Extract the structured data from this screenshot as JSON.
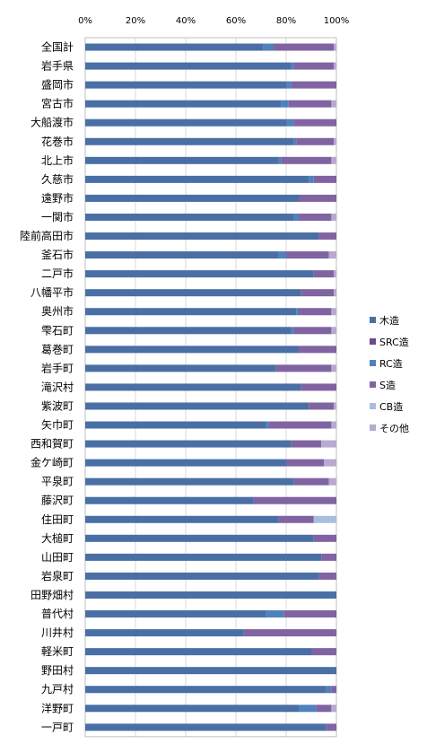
{
  "chart_data": {
    "type": "bar",
    "orientation": "horizontal",
    "stacked": "percent",
    "xlim": [
      0,
      100
    ],
    "x_ticks": [
      "0%",
      "20%",
      "40%",
      "60%",
      "80%",
      "100%"
    ],
    "x_tick_values": [
      0,
      20,
      40,
      60,
      80,
      100
    ],
    "grid": true,
    "legend_position": "right",
    "categories": [
      "全国計",
      "岩手県",
      "盛岡市",
      "宮古市",
      "大船渡市",
      "花巻市",
      "北上市",
      "久慈市",
      "遠野市",
      "一関市",
      "陸前高田市",
      "釜石市",
      "二戸市",
      "八幡平市",
      "奥州市",
      "雫石町",
      "葛巻町",
      "岩手町",
      "滝沢村",
      "紫波町",
      "矢巾町",
      "西和賀町",
      "金ケ崎町",
      "平泉町",
      "藤沢町",
      "住田町",
      "大槌町",
      "山田町",
      "岩泉町",
      "田野畑村",
      "普代村",
      "川井村",
      "軽米町",
      "野田村",
      "九戸村",
      "洋野町",
      "一戸町"
    ],
    "series": [
      {
        "name": "木造",
        "color": "#4a6fa5",
        "values": [
          71,
          82,
          80,
          78,
          80,
          83,
          77,
          89,
          85,
          83,
          93,
          77,
          91,
          86,
          84,
          82,
          85,
          76,
          86,
          89,
          72,
          82,
          80,
          83,
          67,
          77,
          91,
          94,
          93,
          100,
          72,
          63,
          90,
          100,
          96,
          85,
          96
        ]
      },
      {
        "name": "SRC造",
        "color": "#6b4a8c",
        "values": [
          0,
          0,
          0,
          0,
          0,
          0,
          0,
          0,
          0,
          0,
          0,
          0,
          0,
          0,
          0,
          0,
          0,
          0,
          0,
          0,
          0,
          0,
          0,
          0,
          0,
          0,
          0,
          0,
          0,
          0,
          0,
          0,
          0,
          0,
          0,
          0,
          0
        ]
      },
      {
        "name": "RC造",
        "color": "#4f81bd",
        "values": [
          4,
          1,
          2,
          3,
          3,
          1,
          1,
          2,
          0,
          2,
          0,
          3,
          0,
          0,
          1,
          1,
          0,
          0,
          0,
          0,
          1,
          0,
          0,
          0,
          0,
          0,
          0,
          0,
          0,
          0,
          7,
          0,
          0,
          0,
          2,
          7,
          0
        ]
      },
      {
        "name": "S造",
        "color": "#8064a2",
        "values": [
          24,
          16,
          18,
          17,
          17,
          15,
          20,
          9,
          15,
          13,
          7,
          17,
          8,
          13,
          13,
          15,
          15,
          22,
          14,
          10,
          25,
          12,
          15,
          14,
          33,
          14,
          9,
          6,
          7,
          0,
          21,
          37,
          10,
          0,
          2,
          6,
          4
        ]
      },
      {
        "name": "CB造",
        "color": "#a8bedf",
        "values": [
          0,
          0,
          0,
          0,
          0,
          0,
          0,
          0,
          0,
          0,
          0,
          0,
          0,
          0,
          0,
          0,
          0,
          0,
          0,
          0,
          0,
          0,
          0,
          0,
          0,
          9,
          0,
          0,
          0,
          0,
          0,
          0,
          0,
          0,
          0,
          0,
          0
        ]
      },
      {
        "name": "その他",
        "color": "#b7a9cf",
        "values": [
          1,
          1,
          0,
          2,
          0,
          1,
          2,
          0,
          0,
          2,
          0,
          3,
          1,
          1,
          2,
          2,
          0,
          2,
          0,
          1,
          2,
          6,
          5,
          3,
          0,
          0,
          0,
          0,
          0,
          0,
          0,
          0,
          0,
          0,
          0,
          2,
          0
        ]
      }
    ]
  }
}
